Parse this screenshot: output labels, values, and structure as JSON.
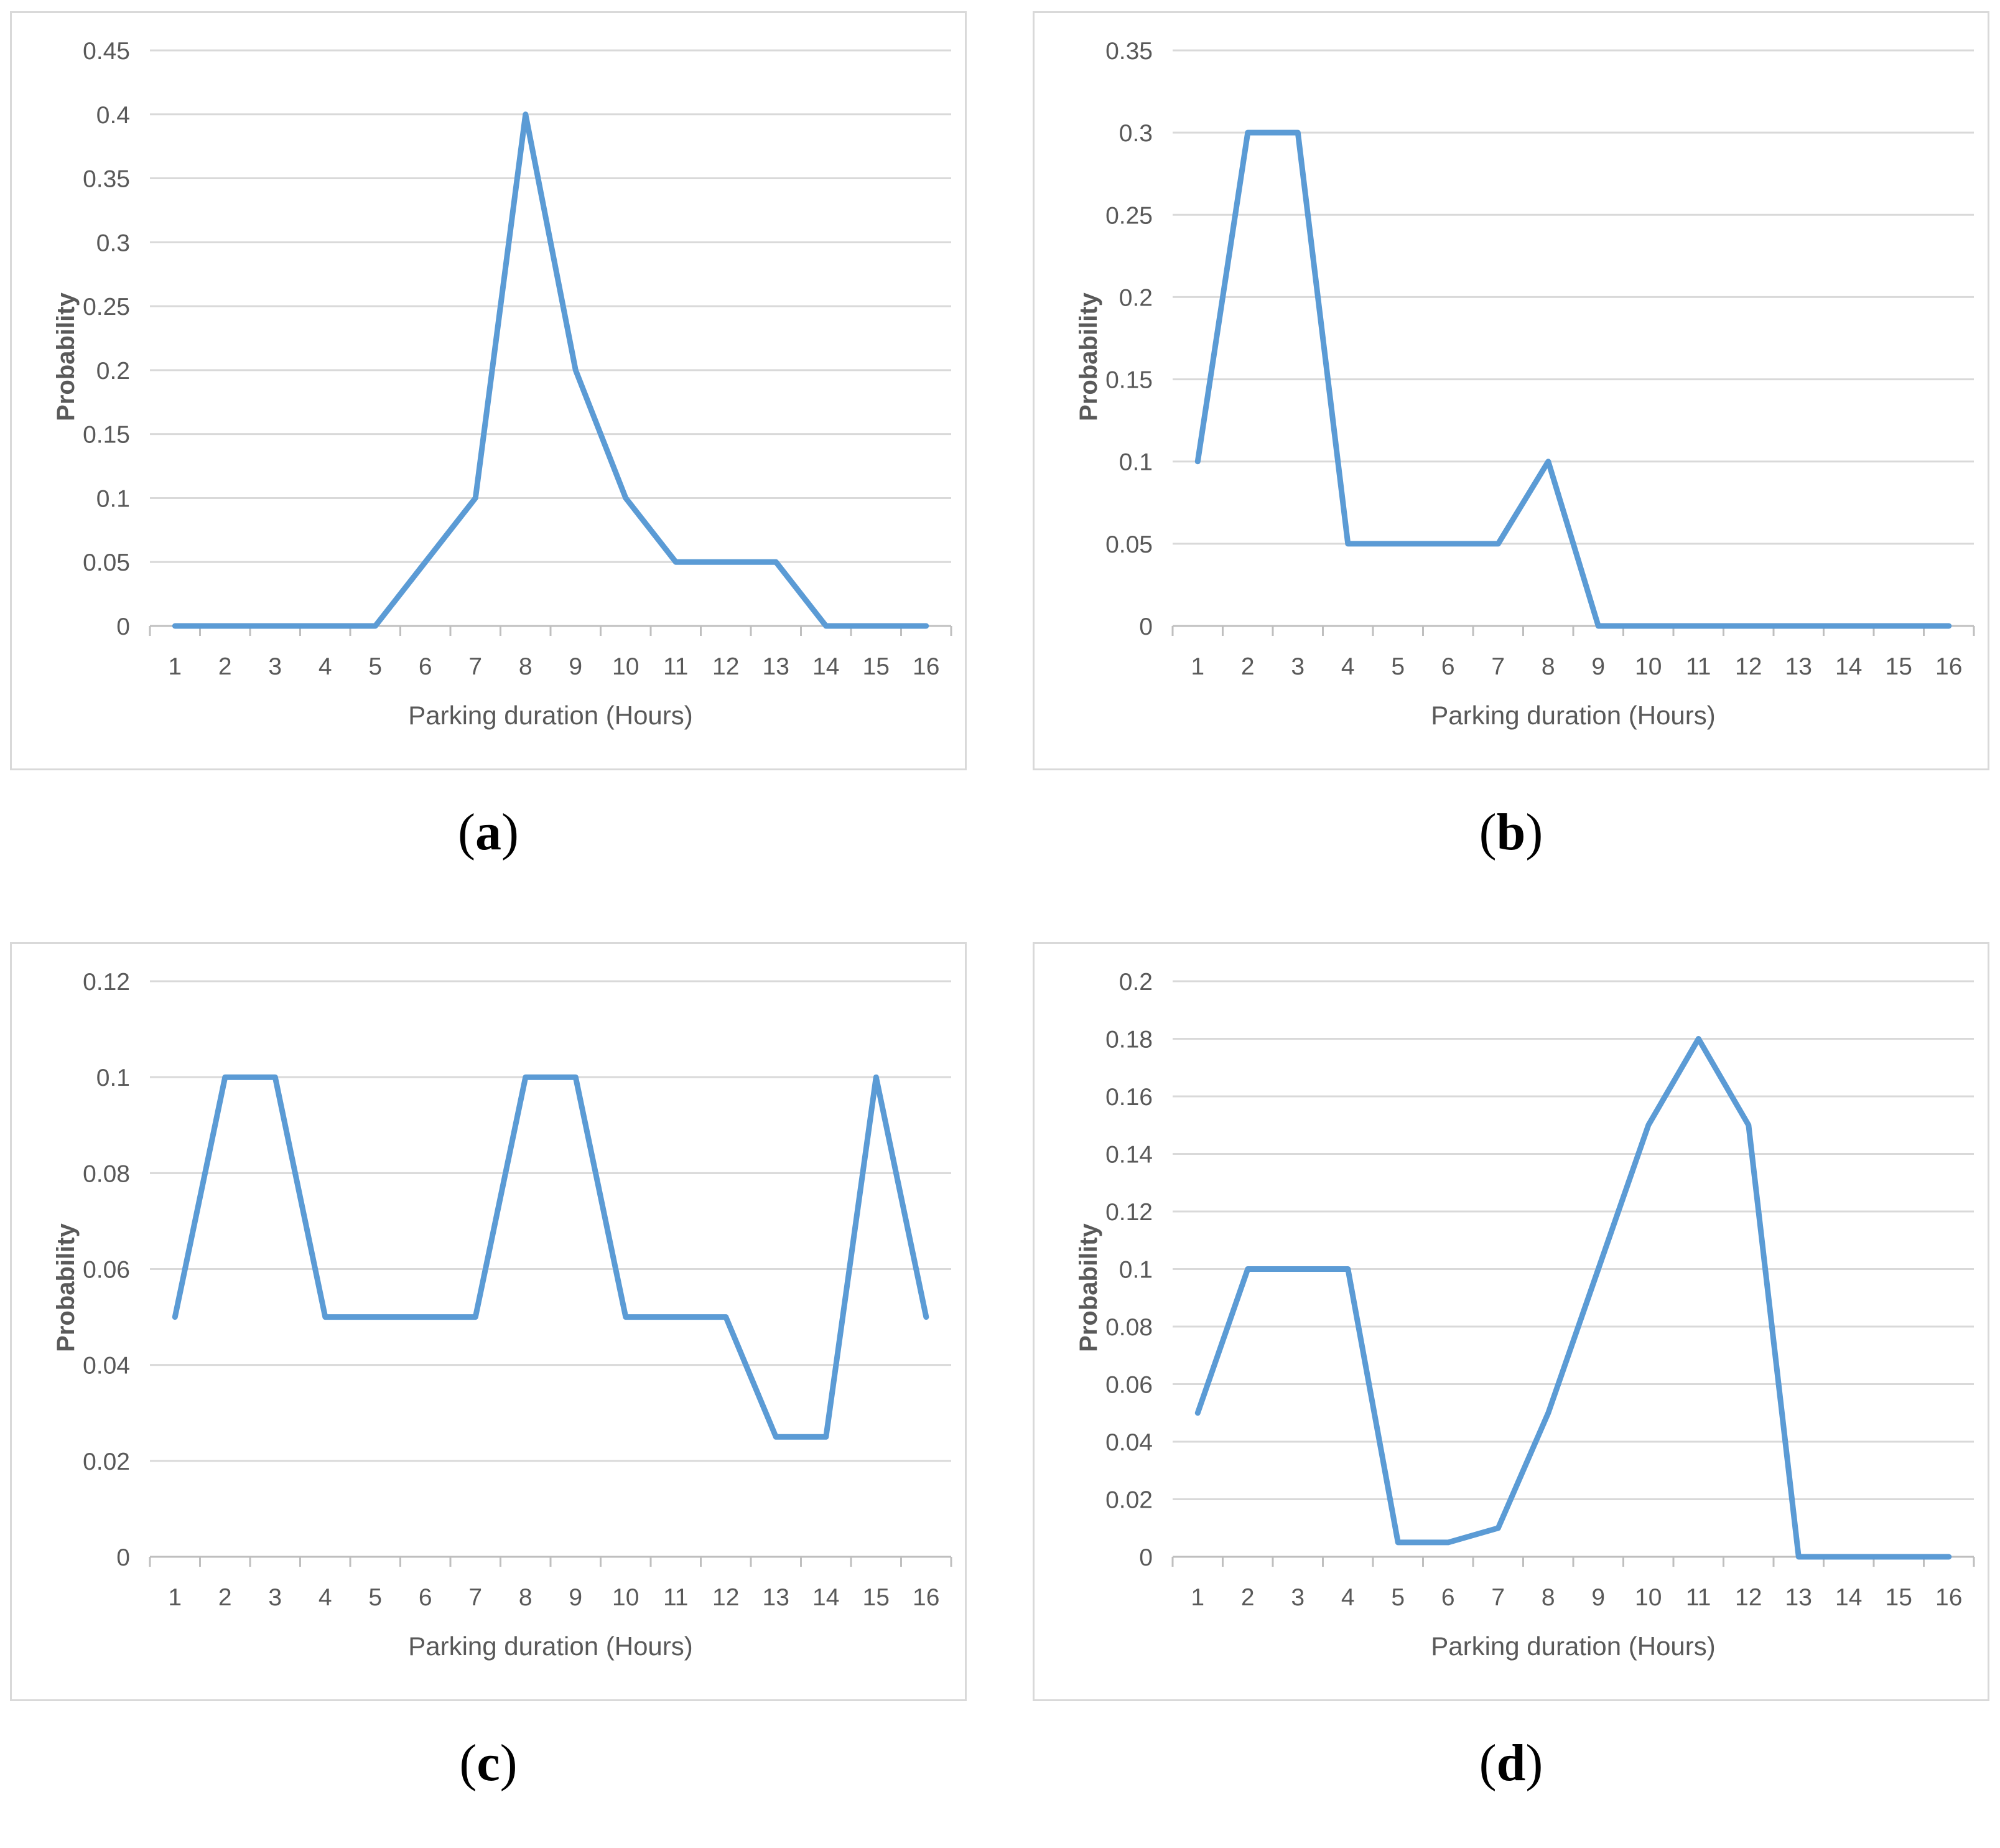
{
  "chart_data": [
    {
      "id": "a",
      "type": "line",
      "caption_letter": "a",
      "xlabel": "Parking duration (Hours)",
      "ylabel": "Probability",
      "x": [
        1,
        2,
        3,
        4,
        5,
        6,
        7,
        8,
        9,
        10,
        11,
        12,
        13,
        14,
        15,
        16
      ],
      "series": [
        {
          "values": [
            0,
            0,
            0,
            0,
            0,
            0.05,
            0.1,
            0.4,
            0.2,
            0.1,
            0.05,
            0.05,
            0.05,
            0,
            0,
            0
          ]
        }
      ],
      "yticks": [
        "0",
        "0.05",
        "0.1",
        "0.15",
        "0.2",
        "0.25",
        "0.3",
        "0.35",
        "0.4",
        "0.45"
      ],
      "ylim": [
        0,
        0.45
      ],
      "grid": true,
      "line_color": "#5b9bd5"
    },
    {
      "id": "b",
      "type": "line",
      "caption_letter": "b",
      "xlabel": "Parking duration (Hours)",
      "ylabel": "Probability",
      "x": [
        1,
        2,
        3,
        4,
        5,
        6,
        7,
        8,
        9,
        10,
        11,
        12,
        13,
        14,
        15,
        16
      ],
      "series": [
        {
          "values": [
            0.1,
            0.3,
            0.3,
            0.05,
            0.05,
            0.05,
            0.05,
            0.1,
            0,
            0,
            0,
            0,
            0,
            0,
            0,
            0
          ]
        }
      ],
      "yticks": [
        "0",
        "0.05",
        "0.1",
        "0.15",
        "0.2",
        "0.25",
        "0.3",
        "0.35"
      ],
      "ylim": [
        0,
        0.35
      ],
      "grid": true,
      "line_color": "#5b9bd5"
    },
    {
      "id": "c",
      "type": "line",
      "caption_letter": "c",
      "xlabel": "Parking duration (Hours)",
      "ylabel": "Probability",
      "x": [
        1,
        2,
        3,
        4,
        5,
        6,
        7,
        8,
        9,
        10,
        11,
        12,
        13,
        14,
        15,
        16
      ],
      "series": [
        {
          "values": [
            0.05,
            0.1,
            0.1,
            0.05,
            0.05,
            0.05,
            0.05,
            0.1,
            0.1,
            0.05,
            0.05,
            0.05,
            0.025,
            0.025,
            0.1,
            0.05
          ]
        }
      ],
      "yticks": [
        "0",
        "0.02",
        "0.04",
        "0.06",
        "0.08",
        "0.1",
        "0.12"
      ],
      "ylim": [
        0,
        0.12
      ],
      "grid": true,
      "line_color": "#5b9bd5"
    },
    {
      "id": "d",
      "type": "line",
      "caption_letter": "d",
      "xlabel": "Parking duration (Hours)",
      "ylabel": "Probability",
      "x": [
        1,
        2,
        3,
        4,
        5,
        6,
        7,
        8,
        9,
        10,
        11,
        12,
        13,
        14,
        15,
        16
      ],
      "series": [
        {
          "values": [
            0.05,
            0.1,
            0.1,
            0.1,
            0.005,
            0.005,
            0.01,
            0.05,
            0.1,
            0.15,
            0.18,
            0.15,
            0,
            0,
            0,
            0
          ]
        }
      ],
      "yticks": [
        "0",
        "0.02",
        "0.04",
        "0.06",
        "0.08",
        "0.1",
        "0.12",
        "0.14",
        "0.16",
        "0.18",
        "0.2"
      ],
      "ylim": [
        0,
        0.2
      ],
      "grid": true,
      "line_color": "#5b9bd5"
    }
  ],
  "captions": [
    {
      "open": "(",
      "letter": "a",
      "close": ")"
    },
    {
      "open": "(",
      "letter": "b",
      "close": ")"
    },
    {
      "open": "(",
      "letter": "c",
      "close": ")"
    },
    {
      "open": "(",
      "letter": "d",
      "close": ")"
    }
  ]
}
